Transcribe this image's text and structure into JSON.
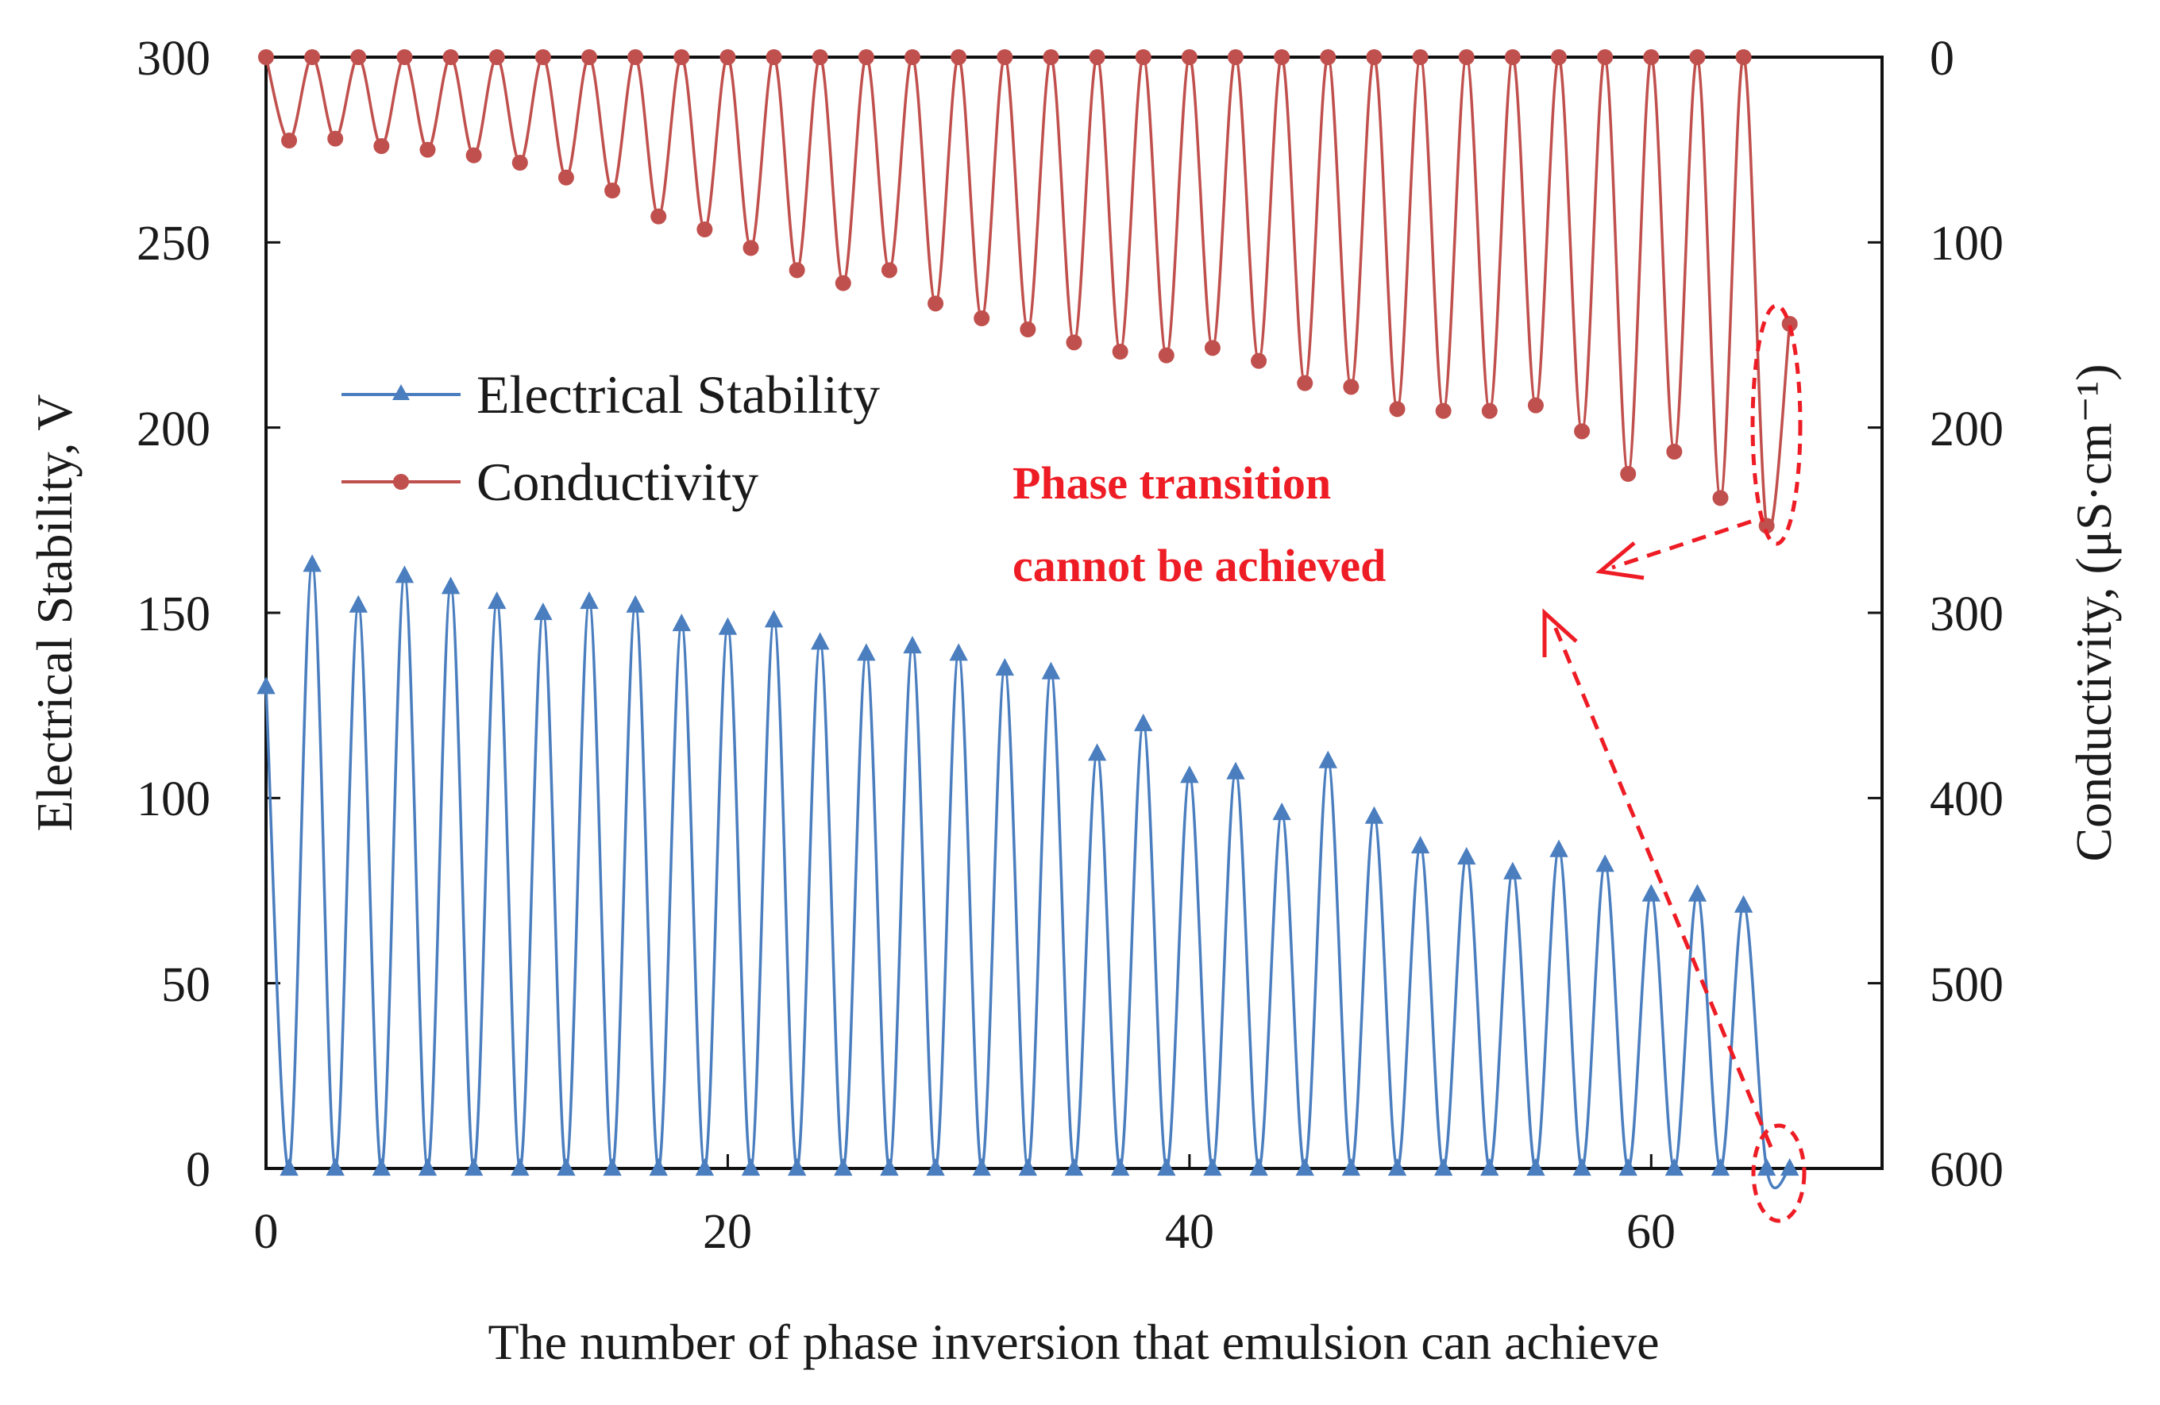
{
  "chart_data": {
    "type": "line",
    "title": "",
    "xlabel": "The number of phase inversion that emulsion can achieve",
    "ylabel": "Electrical Stability, V",
    "y2label": "Conductivity, (μS·cm⁻¹)",
    "xlim": [
      0,
      70
    ],
    "ylim": [
      0,
      300
    ],
    "y2lim": [
      0,
      600
    ],
    "y2_inverted": true,
    "xticks": [
      "0",
      "20",
      "40",
      "60"
    ],
    "yticks": [
      "0",
      "50",
      "100",
      "150",
      "200",
      "250",
      "300"
    ],
    "y2ticks": [
      "0",
      "100",
      "200",
      "300",
      "400",
      "500",
      "600"
    ],
    "legend_position": "center-left",
    "series": [
      {
        "name": "Electrical Stability",
        "axis": "left",
        "marker": "triangle",
        "color": "#4a7ebf",
        "x": [
          0,
          1,
          2,
          3,
          4,
          5,
          6,
          7,
          8,
          9,
          10,
          11,
          12,
          13,
          14,
          15,
          16,
          17,
          18,
          19,
          20,
          21,
          22,
          23,
          24,
          25,
          26,
          27,
          28,
          29,
          30,
          31,
          32,
          33,
          34,
          35,
          36,
          37,
          38,
          39,
          40,
          41,
          42,
          43,
          44,
          45,
          46,
          47,
          48,
          49,
          50,
          51,
          52,
          53,
          54,
          55,
          56,
          57,
          58,
          59,
          60,
          61,
          62,
          63,
          64,
          65,
          66
        ],
        "values": [
          130,
          0,
          163,
          0,
          152,
          0,
          160,
          0,
          157,
          0,
          153,
          0,
          150,
          0,
          153,
          0,
          152,
          0,
          147,
          0,
          146,
          0,
          148,
          0,
          142,
          0,
          139,
          0,
          141,
          0,
          139,
          0,
          135,
          0,
          134,
          0,
          112,
          0,
          120,
          0,
          106,
          0,
          107,
          0,
          96,
          0,
          110,
          0,
          95,
          0,
          87,
          0,
          84,
          0,
          80,
          0,
          86,
          0,
          82,
          0,
          74,
          0,
          74,
          0,
          71,
          0,
          0
        ]
      },
      {
        "name": "Conductivity",
        "axis": "right",
        "marker": "circle",
        "color": "#c0504d",
        "x": [
          0,
          1,
          2,
          3,
          4,
          5,
          6,
          7,
          8,
          9,
          10,
          11,
          12,
          13,
          14,
          15,
          16,
          17,
          18,
          19,
          20,
          21,
          22,
          23,
          24,
          25,
          26,
          27,
          28,
          29,
          30,
          31,
          32,
          33,
          34,
          35,
          36,
          37,
          38,
          39,
          40,
          41,
          42,
          43,
          44,
          45,
          46,
          47,
          48,
          49,
          50,
          51,
          52,
          53,
          54,
          55,
          56,
          57,
          58,
          59,
          60,
          61,
          62,
          63,
          64,
          65,
          66
        ],
        "values": [
          0,
          45,
          0,
          44,
          0,
          48,
          0,
          50,
          0,
          53,
          0,
          57,
          0,
          65,
          0,
          72,
          0,
          86,
          0,
          93,
          0,
          103,
          0,
          115,
          0,
          122,
          0,
          115,
          0,
          133,
          0,
          141,
          0,
          147,
          0,
          154,
          0,
          159,
          0,
          161,
          0,
          157,
          0,
          164,
          0,
          176,
          0,
          178,
          0,
          190,
          0,
          191,
          0,
          191,
          0,
          188,
          0,
          202,
          0,
          225,
          0,
          213,
          0,
          238,
          0,
          253,
          144
        ]
      }
    ],
    "annotations": [
      {
        "text_line1": "Phase transition",
        "text_line2": "cannot be achieved",
        "color": "#ee1c24"
      }
    ]
  }
}
